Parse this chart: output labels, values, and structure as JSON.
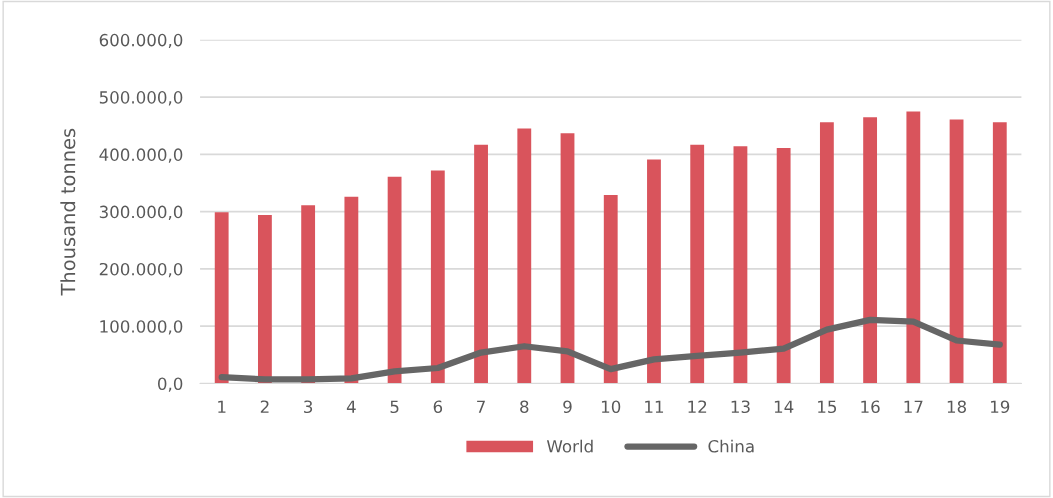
{
  "chart_data": {
    "type": "bar",
    "ylabel": "Thousand tonnes",
    "categories": [
      "1",
      "2",
      "3",
      "4",
      "5",
      "6",
      "7",
      "8",
      "9",
      "10",
      "11",
      "12",
      "13",
      "14",
      "15",
      "16",
      "17",
      "18",
      "19"
    ],
    "series": [
      {
        "name": "World",
        "color": "#d9545c",
        "values": [
          299000,
          294000,
          311000,
          326000,
          361000,
          372000,
          417000,
          445000,
          437000,
          329000,
          391000,
          417000,
          414000,
          411000,
          456000,
          465000,
          475000,
          461000,
          456000
        ]
      },
      {
        "name": "China",
        "type": "line",
        "color": "#666666",
        "values": [
          11000,
          7000,
          7000,
          9000,
          21000,
          27000,
          54000,
          65000,
          56000,
          25000,
          42000,
          48000,
          54000,
          61000,
          94000,
          111000,
          108000,
          75000,
          68000
        ]
      }
    ],
    "ylim": [
      0,
      600000
    ],
    "yticks": [
      {
        "value": 0,
        "label": "0,0"
      },
      {
        "value": 100000,
        "label": "100.000,0"
      },
      {
        "value": 200000,
        "label": "200.000,0"
      },
      {
        "value": 300000,
        "label": "300.000,0"
      },
      {
        "value": 400000,
        "label": "400.000,0"
      },
      {
        "value": 500000,
        "label": "500.000,0"
      },
      {
        "value": 600000,
        "label": "600.000,0"
      }
    ],
    "grid": "y",
    "legend": "bottom",
    "marker": "none",
    "line_style": "solid"
  }
}
